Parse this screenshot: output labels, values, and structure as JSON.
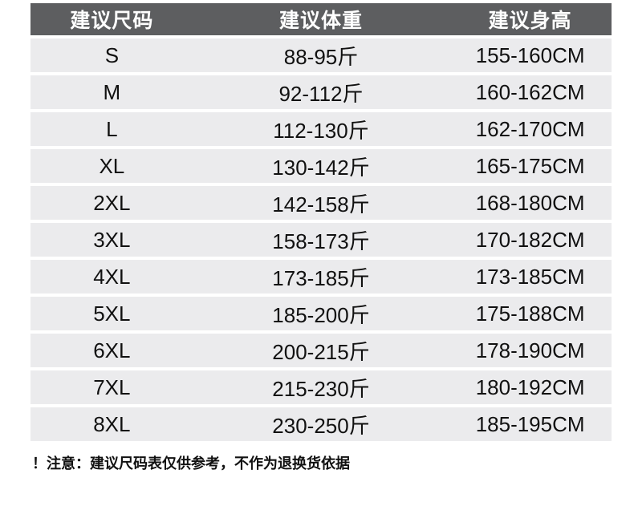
{
  "chart_data": {
    "type": "table",
    "columns": [
      "建议尺码",
      "建议体重",
      "建议身高"
    ],
    "rows": [
      {
        "size": "S",
        "weight": "88-95斤",
        "height": "155-160CM"
      },
      {
        "size": "M",
        "weight": "92-112斤",
        "height": "160-162CM"
      },
      {
        "size": "L",
        "weight": "112-130斤",
        "height": "162-170CM"
      },
      {
        "size": "XL",
        "weight": "130-142斤",
        "height": "165-175CM"
      },
      {
        "size": "2XL",
        "weight": "142-158斤",
        "height": "168-180CM"
      },
      {
        "size": "3XL",
        "weight": "158-173斤",
        "height": "170-182CM"
      },
      {
        "size": "4XL",
        "weight": "173-185斤",
        "height": "173-185CM"
      },
      {
        "size": "5XL",
        "weight": "185-200斤",
        "height": "175-188CM"
      },
      {
        "size": "6XL",
        "weight": "200-215斤",
        "height": "178-190CM"
      },
      {
        "size": "7XL",
        "weight": "215-230斤",
        "height": "180-192CM"
      },
      {
        "size": "8XL",
        "weight": "230-250斤",
        "height": "185-195CM"
      }
    ],
    "note": "！注意：建议尺码表仅供参考，不作为退换货依据"
  },
  "colors": {
    "header_bg": "#5d5e60",
    "row_bg": "#ebebed",
    "header_text": "#ffffff",
    "body_text": "#111111",
    "page_bg": "#ffffff"
  }
}
